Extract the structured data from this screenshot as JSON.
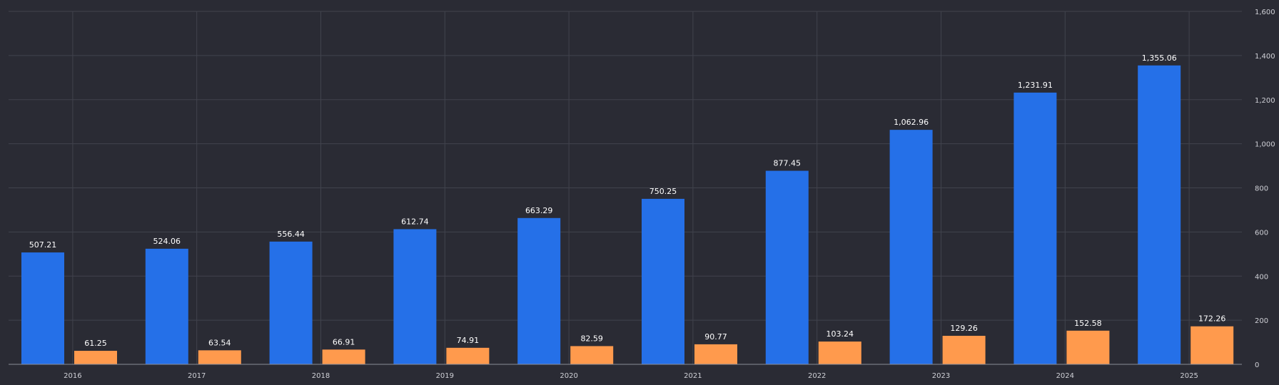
{
  "chart_data": {
    "type": "bar",
    "categories": [
      "2016",
      "2017",
      "2018",
      "2019",
      "2020",
      "2021",
      "2022",
      "2023",
      "2024",
      "2025"
    ],
    "series": [
      {
        "color": "#2570e8",
        "values": [
          507.21,
          524.06,
          556.44,
          612.74,
          663.29,
          750.25,
          877.45,
          1062.96,
          1231.91,
          1355.06
        ],
        "labels": [
          "507.21",
          "524.06",
          "556.44",
          "612.74",
          "663.29",
          "750.25",
          "877.45",
          "1,062.96",
          "1,231.91",
          "1,355.06"
        ]
      },
      {
        "color": "#ff9a4d",
        "values": [
          61.25,
          63.54,
          66.91,
          74.91,
          82.59,
          90.77,
          103.24,
          129.26,
          152.58,
          172.26
        ],
        "labels": [
          "61.25",
          "63.54",
          "66.91",
          "74.91",
          "82.59",
          "90.77",
          "103.24",
          "129.26",
          "152.58",
          "172.26"
        ]
      }
    ],
    "ylim": [
      0,
      1600
    ],
    "y_ticks": [
      0,
      200,
      400,
      600,
      800,
      1000,
      1200,
      1400,
      1600
    ],
    "y_tick_labels": [
      "0",
      "200",
      "400",
      "600",
      "800",
      "1,000",
      "1,200",
      "1,400",
      "1,600"
    ],
    "y_axis_position": "right",
    "grid": true,
    "title": "",
    "xlabel": "",
    "ylabel": ""
  },
  "colors": {
    "background": "#2a2b34",
    "grid": "#41434d",
    "axis": "#8a8c96",
    "tick_text": "#cfd0d6",
    "label_text": "#ffffff"
  }
}
